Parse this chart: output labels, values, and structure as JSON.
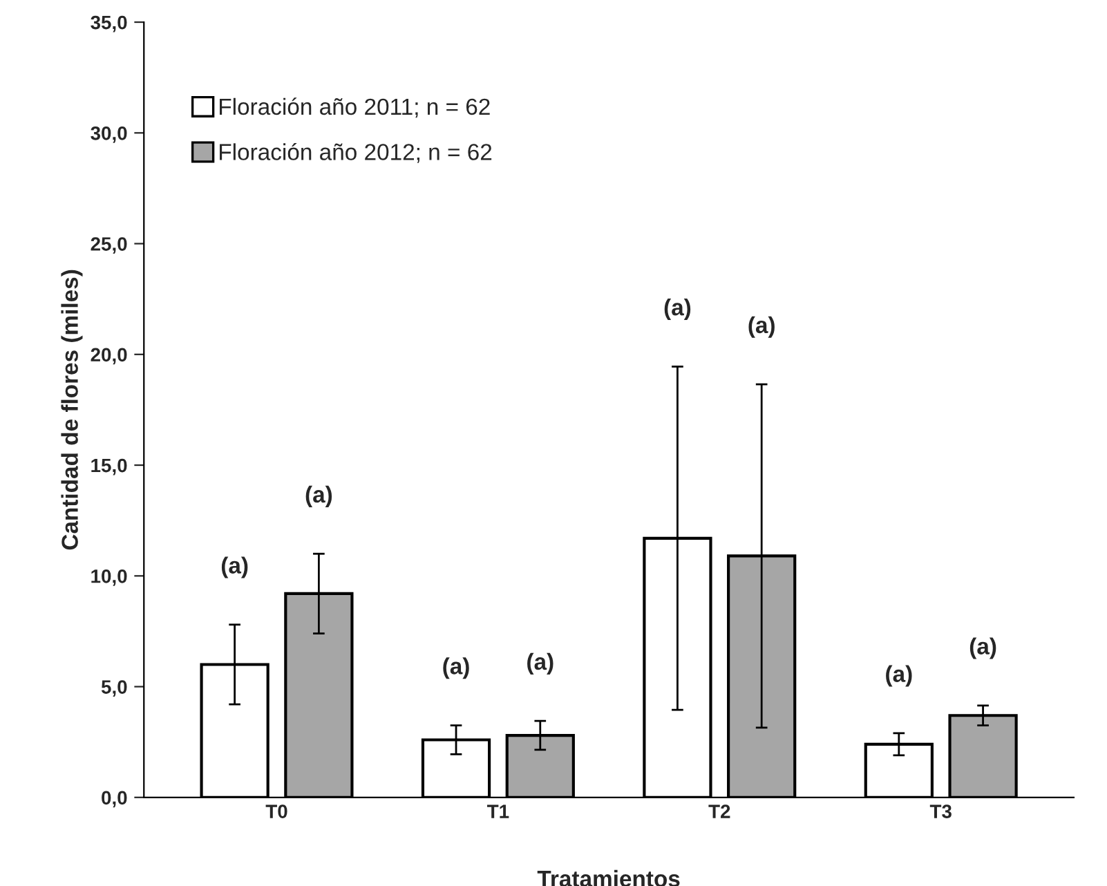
{
  "chart_data": {
    "type": "bar",
    "xlabel": "Tratamientos",
    "ylabel": "Cantidad de flores (miles)",
    "categories": [
      "T0",
      "T1",
      "T2",
      "T3"
    ],
    "series": [
      {
        "name": "Floración año 2011; n = 62",
        "color": "#ffffff",
        "values": [
          6.0,
          2.6,
          11.7,
          2.4
        ],
        "errors": [
          1.8,
          0.65,
          7.75,
          0.5
        ]
      },
      {
        "name": "Floración año 2012; n = 62",
        "color": "#a6a6a6",
        "values": [
          9.2,
          2.8,
          10.9,
          3.7
        ],
        "errors": [
          1.8,
          0.65,
          7.75,
          0.45
        ]
      }
    ],
    "ylim": [
      0,
      35
    ],
    "yticks": [
      {
        "value": 0,
        "label": "0,0"
      },
      {
        "value": 5,
        "label": "5,0"
      },
      {
        "value": 10,
        "label": "10,0"
      },
      {
        "value": 15,
        "label": "15,0"
      },
      {
        "value": 20,
        "label": "20,0"
      },
      {
        "value": 25,
        "label": "25,0"
      },
      {
        "value": 30,
        "label": "30,0"
      },
      {
        "value": 35,
        "label": "35,0"
      }
    ],
    "annotations": [
      "(a)",
      "(a)",
      "(a)",
      "(a)",
      "(a)",
      "(a)",
      "(a)",
      "(a)"
    ],
    "grid": false,
    "legend": "top left"
  }
}
